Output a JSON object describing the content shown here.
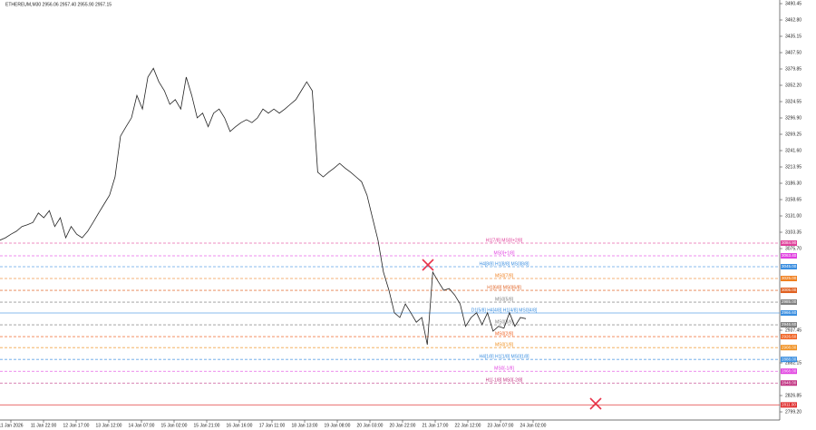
{
  "chart_data": {
    "type": "line",
    "title": "ETHEREUM,M30  2956.06 2957.40 2955.90 2957.15",
    "color": "#222222",
    "x_labels": [
      "11 Jan 2026",
      "11 Jan 22:00",
      "12 Jan 17:00",
      "13 Jan 12:00",
      "14 Jan 07:00",
      "15 Jan 02:00",
      "15 Jan 21:00",
      "16 Jan 16:00",
      "17 Jan 11:00",
      "18 Jan 13:00",
      "19 Jan 08:00",
      "20 Jan 03:00",
      "20 Jan 22:00",
      "21 Jan 17:00",
      "22 Jan 12:00",
      "23 Jan 07:00",
      "24 Jan 02:00"
    ],
    "values": [
      3090,
      3094,
      3100,
      3105,
      3113,
      3116,
      3120,
      3136,
      3128,
      3140,
      3113,
      3128,
      3094,
      3113,
      3100,
      3094,
      3105,
      3120,
      3136,
      3151,
      3166,
      3197,
      3266,
      3282,
      3297,
      3335,
      3312,
      3366,
      3381,
      3358,
      3343,
      3320,
      3328,
      3312,
      3366,
      3335,
      3297,
      3305,
      3282,
      3305,
      3312,
      3297,
      3274,
      3282,
      3289,
      3294,
      3289,
      3297,
      3312,
      3305,
      3312,
      3305,
      3312,
      3320,
      3328,
      3343,
      3358,
      3343,
      3205,
      3197,
      3205,
      3212,
      3220,
      3212,
      3205,
      3197,
      3189,
      3166,
      3128,
      3090,
      3036,
      3005,
      2967,
      2959,
      2982,
      2967,
      2951,
      2959,
      2913,
      3036,
      3020,
      3005,
      3008,
      2997,
      2982,
      2944,
      2959,
      2967,
      2947,
      2967,
      2936,
      2944,
      2941,
      2967,
      2944,
      2959,
      2957
    ],
    "ylim": [
      2785.4,
      3496.6
    ],
    "yticks": [
      {
        "value": 3490.45,
        "label": "3490.45"
      },
      {
        "value": 3462.8,
        "label": "3462.80"
      },
      {
        "value": 3435.15,
        "label": "3435.15"
      },
      {
        "value": 3407.5,
        "label": "3407.50"
      },
      {
        "value": 3379.85,
        "label": "3379.85"
      },
      {
        "value": 3352.2,
        "label": "3352.20"
      },
      {
        "value": 3324.55,
        "label": "3324.55"
      },
      {
        "value": 3296.9,
        "label": "3296.90"
      },
      {
        "value": 3269.25,
        "label": "3269.25"
      },
      {
        "value": 3241.6,
        "label": "3241.60"
      },
      {
        "value": 3213.95,
        "label": "3213.95"
      },
      {
        "value": 3186.3,
        "label": "3186.30"
      },
      {
        "value": 3158.65,
        "label": "3158.65"
      },
      {
        "value": 3131,
        "label": "3131.00"
      },
      {
        "value": 3103.35,
        "label": "3103.35"
      },
      {
        "value": 3075.7,
        "label": "3075.70"
      },
      {
        "value": 2937.45,
        "label": "2937.45"
      },
      {
        "value": 2882.15,
        "label": "2882.15"
      },
      {
        "value": 2826.85,
        "label": "2826.85"
      },
      {
        "value": 2799.2,
        "label": "2799.20"
      }
    ],
    "levels": [
      {
        "name": "H1[7/8] MS0[+2/8]",
        "value": 3084.9,
        "tag": "3084.90",
        "color": "#e0409a"
      },
      {
        "name": "MS0[+1/8]",
        "value": 3063.4,
        "tag": "3063.40",
        "color": "#e040e0"
      },
      {
        "name": "H4[8/8] H1[8/8] MS0[8/8]",
        "value": 3045.0,
        "tag": "3045.00",
        "color": "#3a8ee0"
      },
      {
        "name": "MS0[7/8]",
        "value": 3025.0,
        "tag": "3025.00",
        "color": "#f08020"
      },
      {
        "name": "H1[6/8] MS0[6/8]",
        "value": 3005.0,
        "tag": "3005.00",
        "color": "#e06020"
      },
      {
        "name": "MS0[5/8]",
        "value": 2985.0,
        "tag": "2985.00",
        "color": "#808080"
      },
      {
        "name": "D1[5/8] H4[4/8] H1[4/8] MS0[4/8]",
        "value": 2966.6,
        "tag": "2966.60",
        "color": "#3a8ee0"
      },
      {
        "name": "MS0[3/8]",
        "value": 2946.6,
        "tag": "2946.60",
        "color": "#808080"
      },
      {
        "name": "MS0[2/8]",
        "value": 2926.6,
        "tag": "2926.60",
        "color": "#f06020"
      },
      {
        "name": "MS0[1/8]",
        "value": 2908.0,
        "tag": "2908.00",
        "color": "#f09020"
      },
      {
        "name": "H4[1/8] H1[1/8] MS0[1/8]",
        "value": 2888.0,
        "tag": "2888.00",
        "color": "#3a8ee0"
      },
      {
        "name": "MS0[-1/8]",
        "value": 2868.0,
        "tag": "2868.00",
        "color": "#e040e0"
      },
      {
        "name": "H1[-1/8] MS0[-2/8]",
        "value": 2848.0,
        "tag": "2848.00",
        "color": "#c03080"
      },
      {
        "name": "",
        "value": 2811.0,
        "tag": "2811.00",
        "color": "#e03030"
      }
    ]
  }
}
